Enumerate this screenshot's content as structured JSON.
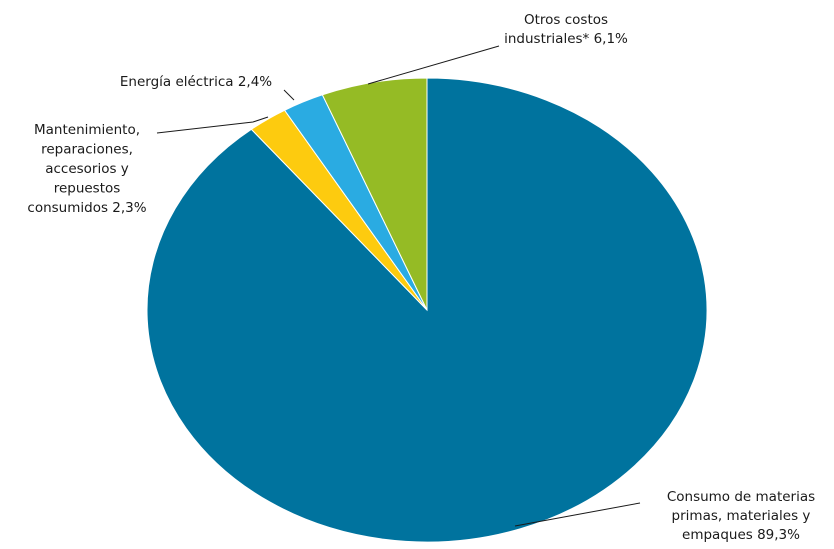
{
  "chart_data": {
    "type": "pie",
    "start": "12 o'clock",
    "direction": "clockwise",
    "legend": "none",
    "slices": [
      {
        "label_lines": [
          "Consumo de materias",
          "primas, materiales y",
          "empaques 89,3%"
        ],
        "value": 89.3,
        "color": "#00739e"
      },
      {
        "label_lines": [
          "Mantenimiento,",
          "reparaciones,",
          "accesorios y",
          "repuestos",
          "consumidos  2,3%"
        ],
        "value": 2.3,
        "color": "#fdcb0f"
      },
      {
        "label_lines": [
          "Energía eléctrica 2,4%"
        ],
        "value": 2.4,
        "color": "#2aabe2"
      },
      {
        "label_lines": [
          "Otros costos",
          "industriales* 6,1%"
        ],
        "value": 6.1,
        "color": "#95bb25"
      }
    ]
  }
}
